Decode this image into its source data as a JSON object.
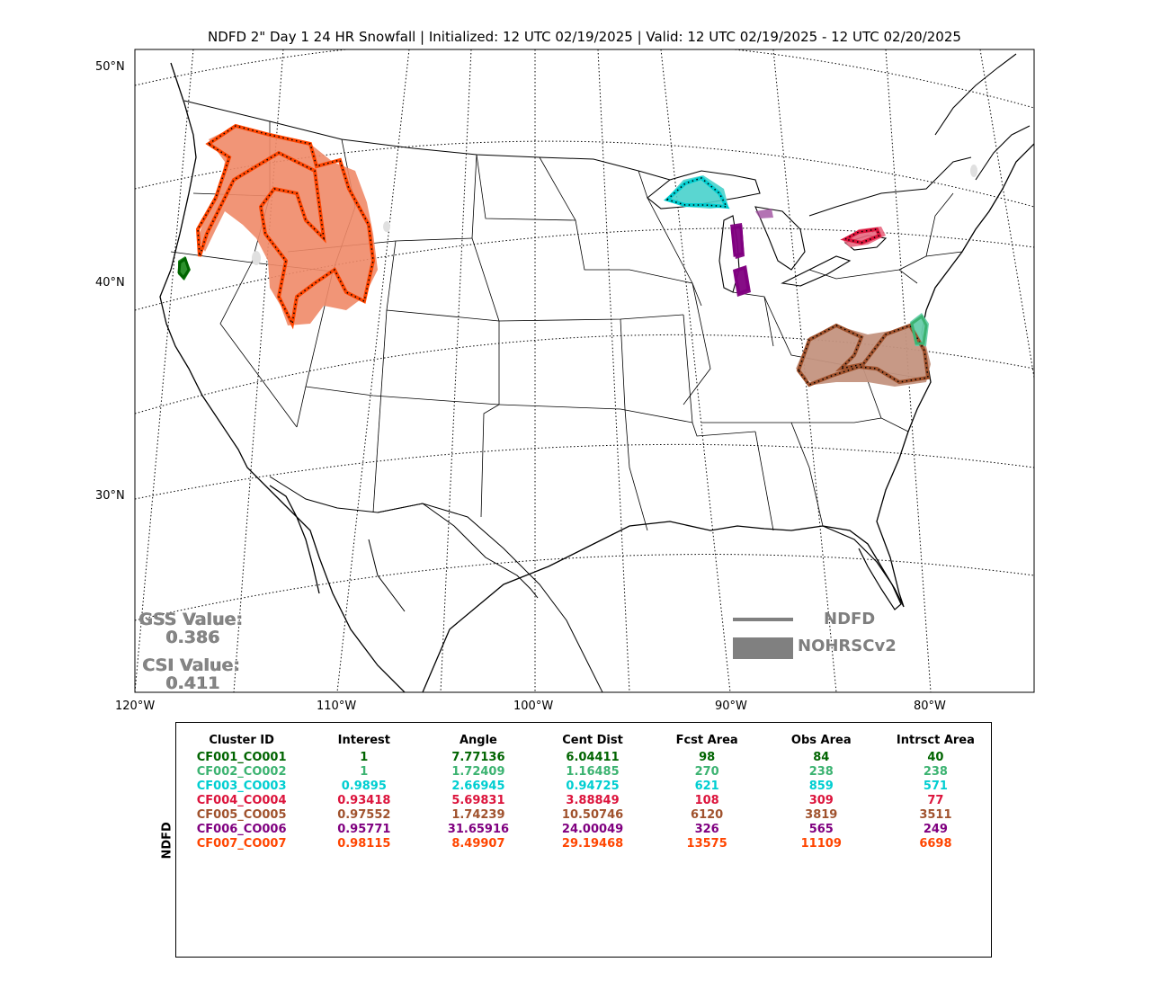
{
  "title": "NDFD 2\" Day 1 24 HR Snowfall | Initialized: 12 UTC 02/19/2025 | Valid: 12 UTC 02/19/2025 - 12 UTC 02/20/2025",
  "axes": {
    "lat_labels": [
      "50°N",
      "40°N",
      "30°N"
    ],
    "lon_labels": [
      "120°W",
      "110°W",
      "100°W",
      "90°W",
      "80°W"
    ]
  },
  "scores": {
    "gss_label": "GSS Value:",
    "gss_value": "0.386",
    "csi_label": "CSI Value:",
    "csi_value": "0.411"
  },
  "legend": {
    "forecast_label": "NDFD",
    "observed_label": "NOHRSCv2",
    "color": "#808080"
  },
  "table": {
    "side_label": "NDFD",
    "columns": [
      "Cluster ID",
      "Interest",
      "Angle",
      "Cent Dist",
      "Fcst Area",
      "Obs Area",
      "Intrsct Area"
    ],
    "rows": [
      {
        "color": "#006400",
        "cells": [
          "CF001_CO001",
          "1",
          "7.77136",
          "6.04411",
          "98",
          "84",
          "40"
        ]
      },
      {
        "color": "#3cb371",
        "cells": [
          "CF002_CO002",
          "1",
          "1.72409",
          "1.16485",
          "270",
          "238",
          "238"
        ]
      },
      {
        "color": "#00ced1",
        "cells": [
          "CF003_CO003",
          "0.9895",
          "2.66945",
          "0.94725",
          "621",
          "859",
          "571"
        ]
      },
      {
        "color": "#dc143c",
        "cells": [
          "CF004_CO004",
          "0.93418",
          "5.69831",
          "3.88849",
          "108",
          "309",
          "77"
        ]
      },
      {
        "color": "#a0522d",
        "cells": [
          "CF005_CO005",
          "0.97552",
          "1.74239",
          "10.50746",
          "6120",
          "3819",
          "3511"
        ]
      },
      {
        "color": "#800080",
        "cells": [
          "CF006_CO006",
          "0.95771",
          "31.65916",
          "24.00049",
          "326",
          "565",
          "249"
        ]
      },
      {
        "color": "#ff4500",
        "cells": [
          "CF007_CO007",
          "0.98115",
          "8.49907",
          "29.19468",
          "13575",
          "11109",
          "6698"
        ]
      }
    ]
  },
  "clusters": [
    {
      "id": "CF001_CO001",
      "color": "#006400",
      "fill": "#228b22",
      "region": "northern-california"
    },
    {
      "id": "CF002_CO002",
      "color": "#3cb371",
      "fill": "#66cdaa",
      "region": "delmarva"
    },
    {
      "id": "CF003_CO003",
      "color": "#00ced1",
      "fill": "#48d1cc",
      "region": "upper-michigan"
    },
    {
      "id": "CF004_CO004",
      "color": "#dc143c",
      "fill": "#e8677f",
      "region": "western-new-york"
    },
    {
      "id": "CF005_CO005",
      "color": "#a0522d",
      "fill": "#c49480",
      "region": "virginia-kentucky"
    },
    {
      "id": "CF006_CO006",
      "color": "#800080",
      "fill": "#a050a0",
      "region": "lake-michigan-shore"
    },
    {
      "id": "CF007_CO007",
      "color": "#ff4500",
      "fill": "#f08a68",
      "region": "northern-rockies"
    }
  ]
}
